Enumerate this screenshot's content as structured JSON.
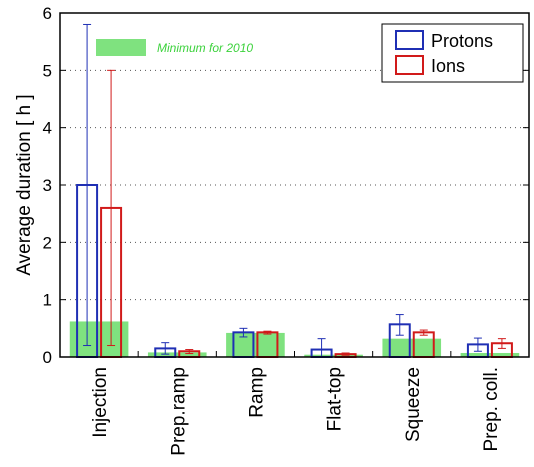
{
  "chart_data": {
    "type": "bar",
    "title": "",
    "xlabel": "",
    "ylabel": "Average duration [ h ]",
    "ylim": [
      0,
      6
    ],
    "yticks": [
      0,
      1,
      2,
      3,
      4,
      5,
      6
    ],
    "grid": "horizontal-dotted",
    "legend_position": "top-right",
    "categories": [
      "Injection",
      "Prep.ramp",
      "Ramp",
      "Flat-top",
      "Squeeze",
      "Prep. coll."
    ],
    "series": [
      {
        "name": "Protons",
        "color": "#1f2fb4",
        "values": [
          3.0,
          0.15,
          0.43,
          0.13,
          0.57,
          0.22
        ],
        "error_low": [
          0.2,
          0.05,
          0.35,
          0.0,
          0.38,
          0.1
        ],
        "error_high": [
          5.8,
          0.25,
          0.5,
          0.32,
          0.74,
          0.33
        ]
      },
      {
        "name": "Ions",
        "color": "#d11a1a",
        "values": [
          2.6,
          0.1,
          0.43,
          0.05,
          0.43,
          0.24
        ],
        "error_low": [
          0.2,
          0.06,
          0.4,
          0.03,
          0.38,
          0.15
        ],
        "error_high": [
          5.0,
          0.13,
          0.45,
          0.07,
          0.47,
          0.32
        ]
      }
    ],
    "minimum": {
      "label": "Minimum for 2010",
      "color": "#7fe27f",
      "values": [
        0.62,
        0.08,
        0.42,
        0.04,
        0.32,
        0.07
      ]
    }
  }
}
